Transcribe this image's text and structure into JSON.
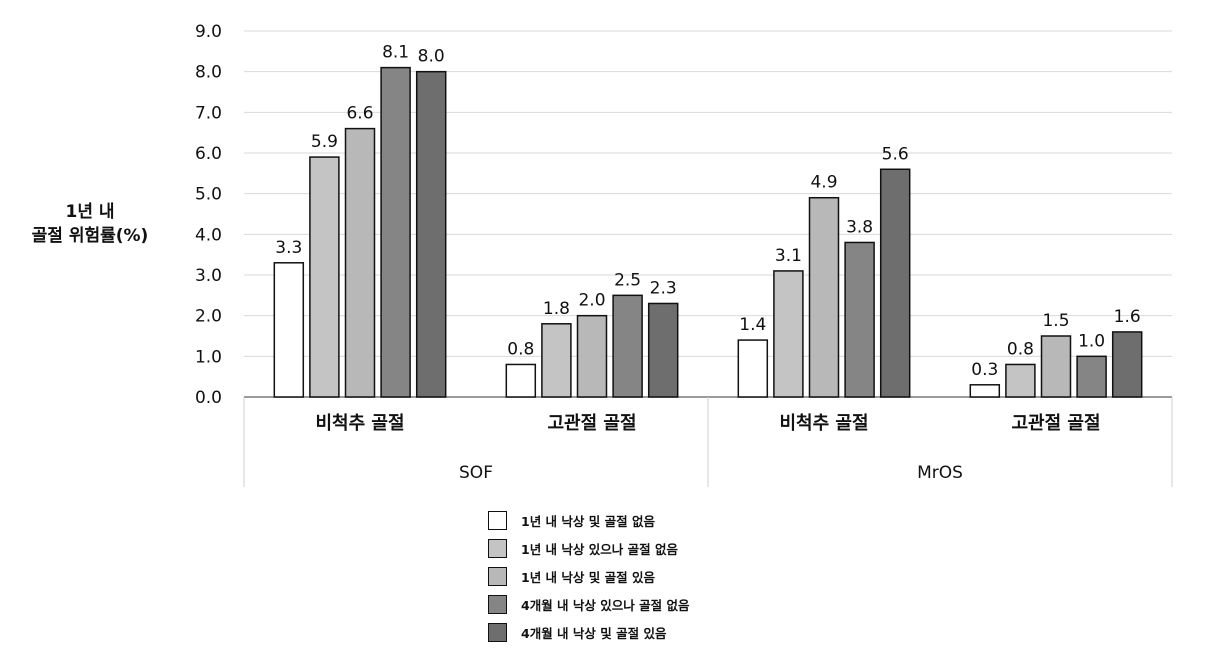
{
  "chart_data": {
    "type": "bar",
    "ylabel_lines": [
      "1년 내",
      "골절 위험률(%)"
    ],
    "ylim": [
      0,
      9
    ],
    "yticks": [
      "0.0",
      "1.0",
      "2.0",
      "3.0",
      "4.0",
      "5.0",
      "6.0",
      "7.0",
      "8.0",
      "9.0"
    ],
    "grid": true,
    "groups": [
      {
        "study": "SOF",
        "subgroups": [
          {
            "label": "비척추 골절",
            "values": [
              3.3,
              5.9,
              6.6,
              8.1,
              8.0
            ]
          },
          {
            "label": "고관절 골절",
            "values": [
              0.8,
              1.8,
              2.0,
              2.5,
              2.3
            ]
          }
        ]
      },
      {
        "study": "MrOS",
        "subgroups": [
          {
            "label": "비척추 골절",
            "values": [
              1.4,
              3.1,
              4.9,
              3.8,
              5.6
            ]
          },
          {
            "label": "고관절 골절",
            "values": [
              0.3,
              0.8,
              1.5,
              1.0,
              1.6
            ]
          }
        ]
      }
    ],
    "series": [
      {
        "name": "1년 내 낙상 및 골절 없음",
        "color": "#ffffff"
      },
      {
        "name": "1년 내 낙상 있으나 골절 없음",
        "color": "#c4c4c4"
      },
      {
        "name": "1년 내 낙상 및 골절 있음",
        "color": "#b8b8b8"
      },
      {
        "name": "4개월 내 낙상 있으나 골절 없음",
        "color": "#858585"
      },
      {
        "name": "4개월 내 낙상 및 골절 있음",
        "color": "#6e6e6e"
      }
    ],
    "legend_position": "bottom"
  }
}
